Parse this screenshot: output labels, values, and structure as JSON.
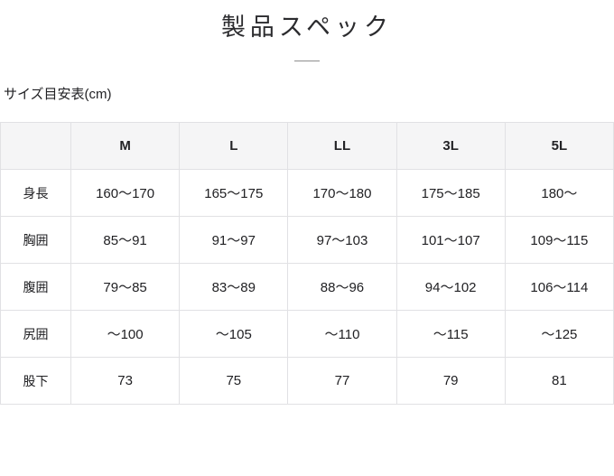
{
  "page": {
    "title": "製品スペック",
    "subtitle": "サイズ目安表(cm)"
  },
  "colors": {
    "header_bg": "#f5f5f6",
    "border": "#e1e1e4",
    "text": "#212124",
    "title_divider": "#8e8e8e"
  },
  "size_table": {
    "columns": [
      "",
      "M",
      "L",
      "LL",
      "3L",
      "5L"
    ],
    "rows": [
      {
        "label": "身長",
        "values": [
          "160〜170",
          "165〜175",
          "170〜180",
          "175〜185",
          "180〜"
        ]
      },
      {
        "label": "胸囲",
        "values": [
          "85〜91",
          "91〜97",
          "97〜103",
          "101〜107",
          "109〜115"
        ]
      },
      {
        "label": "腹囲",
        "values": [
          "79〜85",
          "83〜89",
          "88〜96",
          "94〜102",
          "106〜114"
        ]
      },
      {
        "label": "尻囲",
        "values": [
          "〜100",
          "〜105",
          "〜110",
          "〜115",
          "〜125"
        ]
      },
      {
        "label": "股下",
        "values": [
          "73",
          "75",
          "77",
          "79",
          "81"
        ]
      }
    ]
  }
}
